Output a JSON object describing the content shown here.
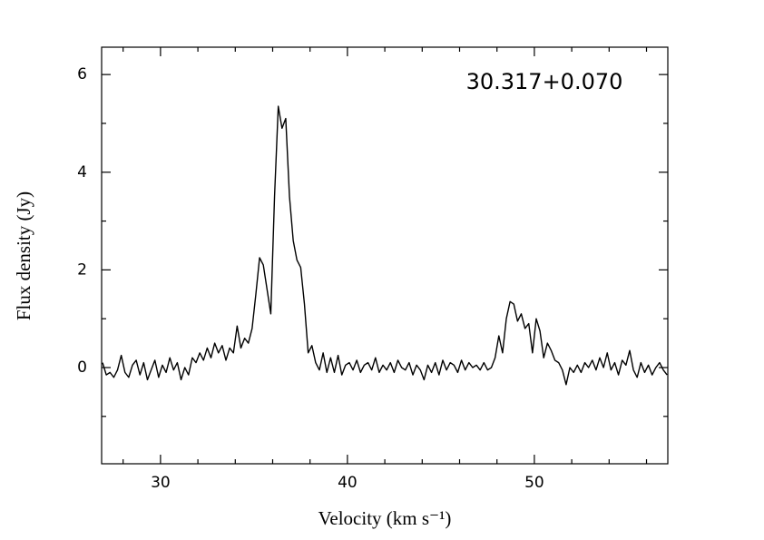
{
  "chart_data": {
    "type": "line",
    "title": "30.317+0.070",
    "xlabel": "Velocity (km s⁻¹)",
    "ylabel": "Flux density (Jy)",
    "color": "#000000",
    "xlim": [
      26.85,
      57.14
    ],
    "ylim": [
      -1.97,
      6.56
    ],
    "xticks": [
      30,
      40,
      50
    ],
    "yticks": [
      0,
      2,
      4,
      6
    ],
    "xminorticks": [
      28,
      32,
      34,
      36,
      38,
      42,
      44,
      46,
      48,
      52,
      54,
      56
    ],
    "yminorticks": [
      -1,
      1,
      3,
      5
    ],
    "x": [
      26.9,
      27.1,
      27.3,
      27.5,
      27.7,
      27.9,
      28.1,
      28.3,
      28.5,
      28.7,
      28.9,
      29.1,
      29.3,
      29.5,
      29.7,
      29.9,
      30.1,
      30.3,
      30.5,
      30.7,
      30.9,
      31.1,
      31.3,
      31.5,
      31.7,
      31.9,
      32.1,
      32.3,
      32.5,
      32.7,
      32.9,
      33.1,
      33.3,
      33.5,
      33.7,
      33.9,
      34.1,
      34.3,
      34.5,
      34.7,
      34.9,
      35.1,
      35.3,
      35.5,
      35.7,
      35.9,
      36.1,
      36.3,
      36.5,
      36.7,
      36.9,
      37.1,
      37.3,
      37.5,
      37.7,
      37.9,
      38.1,
      38.3,
      38.5,
      38.7,
      38.9,
      39.1,
      39.3,
      39.5,
      39.7,
      39.9,
      40.1,
      40.3,
      40.5,
      40.7,
      40.9,
      41.1,
      41.3,
      41.5,
      41.7,
      41.9,
      42.1,
      42.3,
      42.5,
      42.7,
      42.9,
      43.1,
      43.3,
      43.5,
      43.7,
      43.9,
      44.1,
      44.3,
      44.5,
      44.7,
      44.9,
      45.1,
      45.3,
      45.5,
      45.7,
      45.9,
      46.1,
      46.3,
      46.5,
      46.7,
      46.9,
      47.1,
      47.3,
      47.5,
      47.7,
      47.9,
      48.1,
      48.3,
      48.5,
      48.7,
      48.9,
      49.1,
      49.3,
      49.5,
      49.7,
      49.9,
      50.1,
      50.3,
      50.5,
      50.7,
      50.9,
      51.1,
      51.3,
      51.5,
      51.7,
      51.9,
      52.1,
      52.3,
      52.5,
      52.7,
      52.9,
      53.1,
      53.3,
      53.5,
      53.7,
      53.9,
      54.1,
      54.3,
      54.5,
      54.7,
      54.9,
      55.1,
      55.3,
      55.5,
      55.7,
      55.9,
      56.1,
      56.3,
      56.5,
      56.7,
      56.9,
      57.1
    ],
    "values": [
      0.1,
      -0.15,
      -0.1,
      -0.2,
      -0.05,
      0.25,
      -0.1,
      -0.2,
      0.05,
      0.15,
      -0.15,
      0.1,
      -0.25,
      -0.05,
      0.15,
      -0.2,
      0.05,
      -0.1,
      0.2,
      -0.05,
      0.1,
      -0.25,
      0.0,
      -0.15,
      0.2,
      0.1,
      0.3,
      0.15,
      0.4,
      0.2,
      0.5,
      0.3,
      0.45,
      0.15,
      0.4,
      0.3,
      0.85,
      0.4,
      0.6,
      0.5,
      0.8,
      1.5,
      2.25,
      2.1,
      1.6,
      1.1,
      3.5,
      5.35,
      4.9,
      5.1,
      3.5,
      2.6,
      2.2,
      2.05,
      1.3,
      0.3,
      0.45,
      0.1,
      -0.05,
      0.3,
      -0.1,
      0.2,
      -0.1,
      0.25,
      -0.15,
      0.05,
      0.1,
      -0.05,
      0.15,
      -0.1,
      0.05,
      0.1,
      -0.05,
      0.2,
      -0.1,
      0.05,
      -0.05,
      0.1,
      -0.1,
      0.15,
      0.0,
      -0.05,
      0.1,
      -0.15,
      0.05,
      -0.05,
      -0.25,
      0.05,
      -0.1,
      0.1,
      -0.15,
      0.15,
      -0.05,
      0.1,
      0.05,
      -0.1,
      0.15,
      -0.05,
      0.1,
      0.0,
      0.05,
      -0.05,
      0.1,
      -0.05,
      0.0,
      0.2,
      0.65,
      0.3,
      1.0,
      1.35,
      1.3,
      0.95,
      1.1,
      0.8,
      0.9,
      0.3,
      1.0,
      0.75,
      0.2,
      0.5,
      0.35,
      0.15,
      0.1,
      -0.05,
      -0.35,
      0.0,
      -0.1,
      0.05,
      -0.1,
      0.1,
      0.0,
      0.15,
      -0.05,
      0.2,
      0.0,
      0.3,
      -0.05,
      0.1,
      -0.15,
      0.15,
      0.05,
      0.35,
      -0.05,
      -0.2,
      0.1,
      -0.1,
      0.05,
      -0.15,
      0.0,
      0.1,
      -0.05,
      -0.15
    ]
  }
}
